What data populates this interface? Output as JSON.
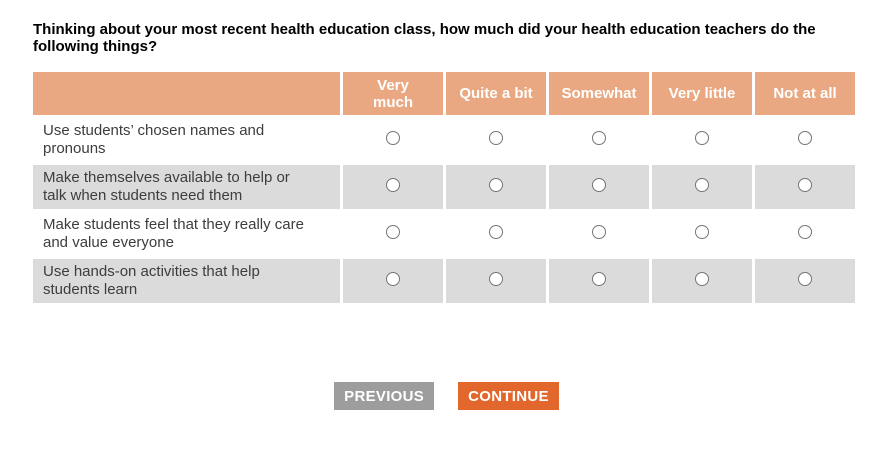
{
  "question": {
    "text": "Thinking about your most recent health education class, how much did your health education teachers do the following things?"
  },
  "matrix": {
    "columns": [
      "Very much",
      "Quite a bit",
      "Somewhat",
      "Very little",
      "Not at all"
    ],
    "rows": [
      {
        "label": "Use students’ chosen names and pronouns"
      },
      {
        "label": "Make themselves available to help or talk when students need them"
      },
      {
        "label": "Make students feel that they really care and value everyone"
      },
      {
        "label": "Use hands-on activities that help students learn"
      }
    ],
    "selected": null
  },
  "buttons": {
    "previous": "PREVIOUS",
    "continue": "CONTINUE"
  },
  "colors": {
    "header_bg": "#e9a881",
    "alt_row_bg": "#dbdbdb",
    "previous_bg": "#9d9d9d",
    "continue_bg": "#e2672c"
  }
}
